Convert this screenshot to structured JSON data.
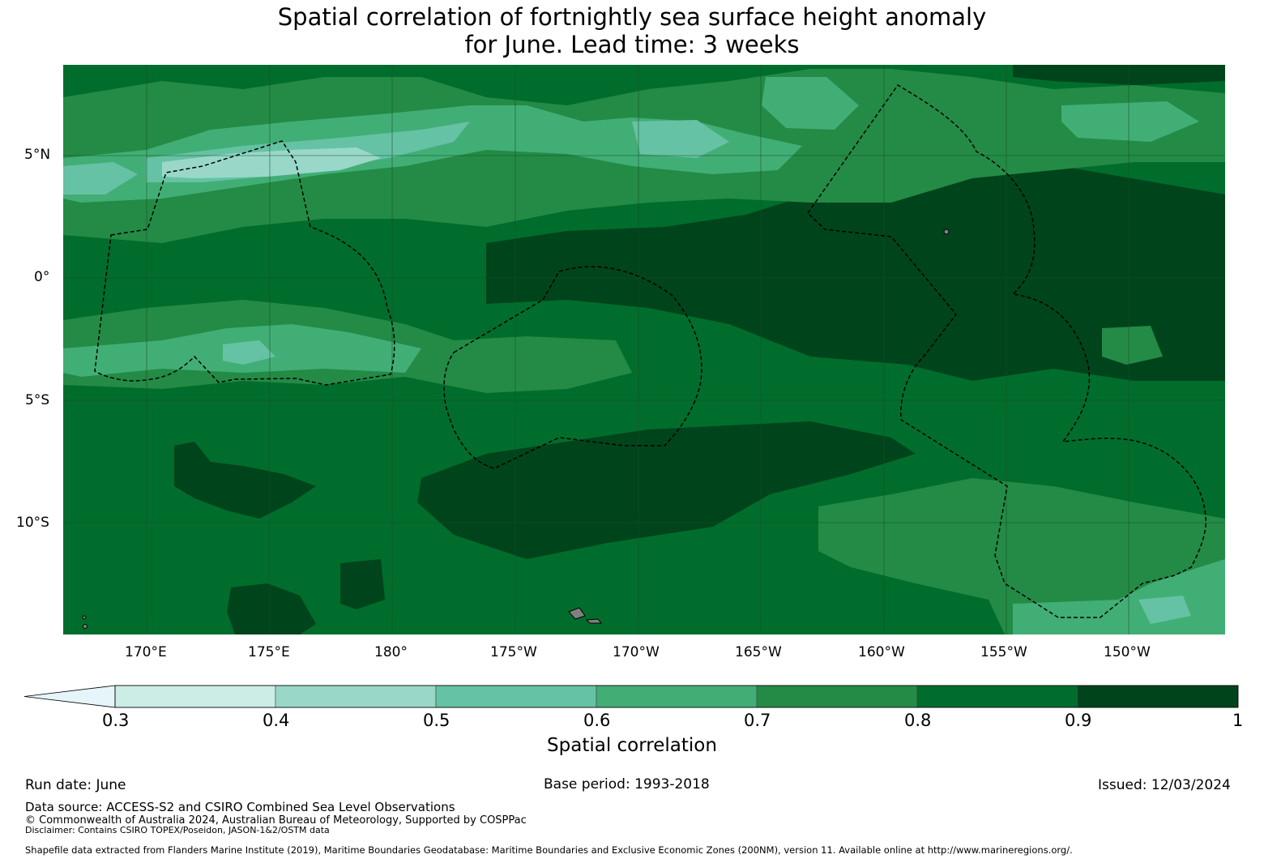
{
  "title": {
    "line1": "Spatial correlation of fortnightly sea surface height anomaly",
    "line2": "for June. Lead time: 3 weeks"
  },
  "map": {
    "lat_labels": [
      "5°N",
      "0°",
      "5°S",
      "10°S"
    ],
    "lon_labels": [
      "170°E",
      "175°E",
      "180°",
      "175°W",
      "170°W",
      "165°W",
      "160°W",
      "155°W",
      "150°W"
    ],
    "ocean_base_color": "#006d2c",
    "land_color": "#808080",
    "boundary_style": "dashed black EEZ outlines"
  },
  "colorbar": {
    "label": "Spatial correlation",
    "ticks": [
      "0.3",
      "0.4",
      "0.5",
      "0.6",
      "0.7",
      "0.8",
      "0.9",
      "1"
    ],
    "extend": "min",
    "under_color": "#e5f5f9",
    "colors": [
      "#ccece6",
      "#99d8c9",
      "#66c2a4",
      "#41ae76",
      "#238b45",
      "#006d2c",
      "#00441b"
    ]
  },
  "footer": {
    "run_date": "Run date: June",
    "base_period": "Base period: 1993-2018",
    "issued": "Issued: 12/03/2024",
    "data_source": "Data source: ACCESS-S2 and CSIRO Combined Sea Level Observations",
    "copyright": "© Commonwealth of Australia 2024, Australian Bureau of Meteorology, Supported by COSPPac",
    "disclaimer": "Disclaimer: Contains CSIRO TOPEX/Poseidon, JASON-1&2/OSTM data",
    "shapefile": "Shapefile data extracted from Flanders Marine Institute (2019), Maritime Boundaries Geodatabase: Maritime Boundaries and Exclusive Economic Zones (200NM), version 11. Available online at http://www.marineregions.org/."
  }
}
